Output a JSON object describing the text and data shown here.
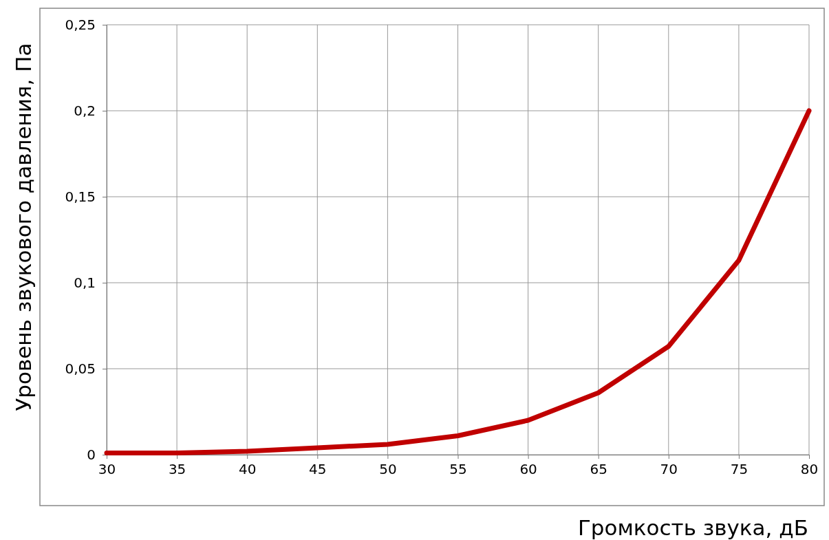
{
  "chart_data": {
    "type": "line",
    "xlabel": "Громкость звука, дБ",
    "ylabel": "Уровень звукового давления, Па",
    "x": [
      30,
      35,
      40,
      45,
      50,
      55,
      60,
      65,
      70,
      75,
      80
    ],
    "series": [
      {
        "color": "#c00000",
        "values": [
          0.001,
          0.001,
          0.002,
          0.004,
          0.006,
          0.011,
          0.02,
          0.036,
          0.063,
          0.113,
          0.2
        ]
      }
    ],
    "xlim": [
      30,
      80
    ],
    "xticks": [
      30,
      35,
      40,
      45,
      50,
      55,
      60,
      65,
      70,
      75,
      80
    ],
    "ylim": [
      0,
      0.25
    ],
    "yticks": [
      0,
      {
        "value": 0.05,
        "label": "0,05"
      },
      {
        "value": 0.1,
        "label": "0,1"
      },
      {
        "value": 0.15,
        "label": "0,15"
      },
      {
        "value": 0.2,
        "label": "0,2"
      },
      {
        "value": 0.25,
        "label": "0,25"
      }
    ],
    "grid": true,
    "marker": "none",
    "line_style": "solid"
  }
}
